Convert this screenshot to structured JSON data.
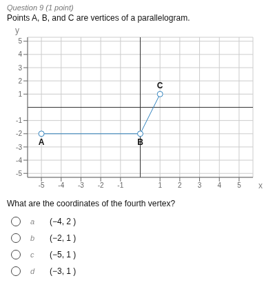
{
  "chart_data": {
    "type": "line",
    "title": "Question 9 (1 point)",
    "subtitle": "Points A, B, and C are vertices of a parallelogram.",
    "question": "What are the coordinates of the fourth vertex?",
    "choices": [
      [
        "a",
        "(−4, 2 )"
      ],
      [
        "b",
        "(−2, 1 )"
      ],
      [
        "c",
        "(−5, 1 )"
      ],
      [
        "d",
        "(−3, 1 )"
      ]
    ],
    "x_label": "x",
    "y_label": "y",
    "x": [
      -5,
      0,
      1
    ],
    "values": [
      -2,
      -2,
      1
    ],
    "annotations": [
      {
        "text": "A",
        "x": -5,
        "y": -2
      },
      {
        "text": "B",
        "x": 0,
        "y": -2
      },
      {
        "text": "C",
        "x": 1,
        "y": 1
      }
    ],
    "xlim": [
      -5.7,
      5.7
    ],
    "ylim": [
      -5.3,
      5.3
    ],
    "xticks": [
      -5,
      -4,
      -3,
      -2,
      -1,
      1,
      2,
      3,
      4,
      5
    ],
    "yticks": [
      -5,
      -4,
      -3,
      -2,
      -1,
      1,
      2,
      3,
      4,
      5
    ],
    "grid": true
  }
}
